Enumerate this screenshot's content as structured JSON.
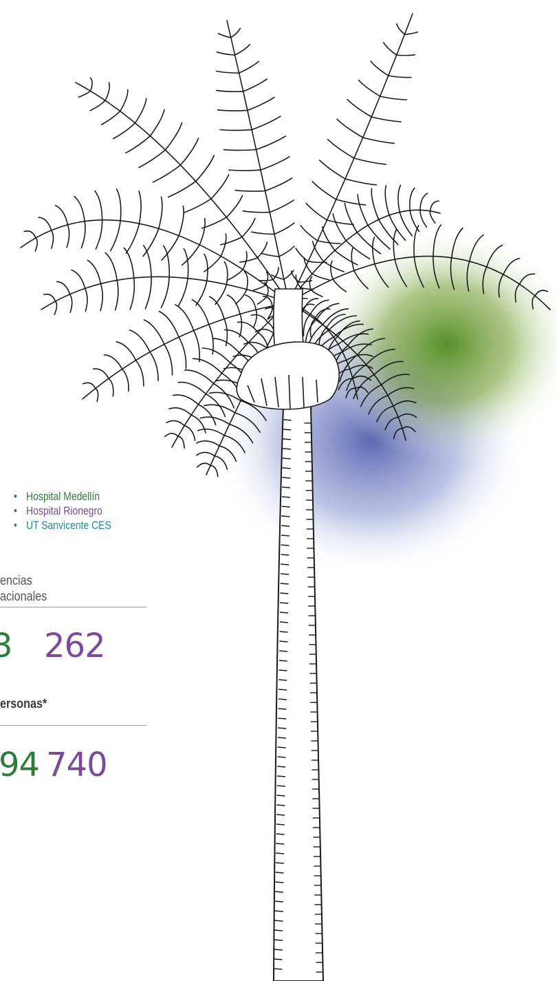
{
  "legend": [
    {
      "bullet": "•",
      "label": "Hospital Medellín",
      "color": "#2e7d3c"
    },
    {
      "bullet": "•",
      "label": "Hospital Rionegro",
      "color": "#7b4b9a"
    },
    {
      "bullet": "•",
      "label": "UT Sanvicente CES",
      "color": "#1e8c8a"
    }
  ],
  "block1": {
    "label_line1": "encias",
    "label_line2": "acionales",
    "value_green": "3",
    "value_purple": "262"
  },
  "block2": {
    "label": "ersonas*",
    "value_green": "94",
    "value_purple": "740"
  },
  "colors": {
    "green": "#2e7d3c",
    "purple": "#7b4b9a",
    "teal": "#1e8c8a",
    "glow_green": "#6f9a2c",
    "glow_blue": "#6a78c0"
  },
  "illustration": "palm-tree-sketch"
}
